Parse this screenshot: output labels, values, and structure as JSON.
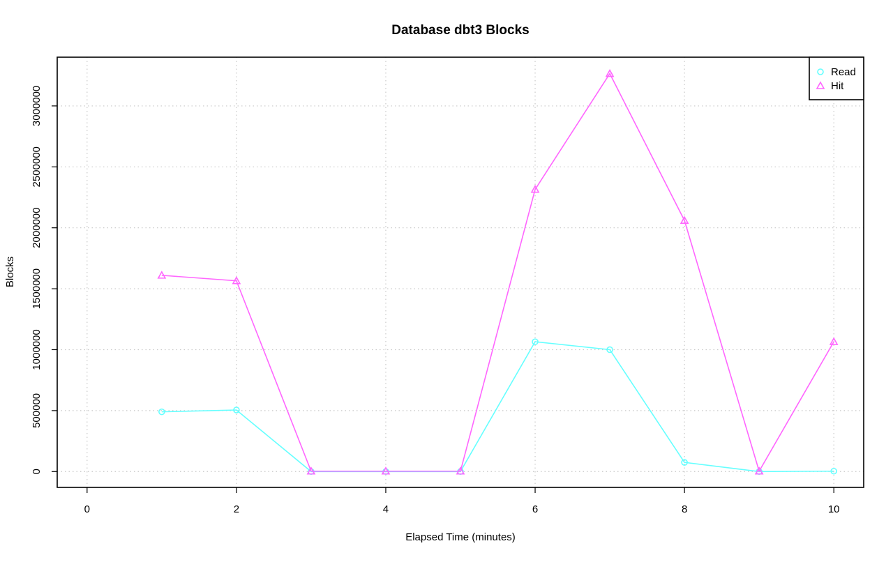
{
  "chart_data": {
    "type": "line",
    "title": "Database dbt3 Blocks",
    "xlabel": "Elapsed Time (minutes)",
    "ylabel": "Blocks",
    "xlim": [
      -0.4,
      10.4
    ],
    "ylim": [
      -130000,
      3400000
    ],
    "x_ticks": [
      0,
      2,
      4,
      6,
      8,
      10
    ],
    "y_ticks": [
      0,
      500000,
      1000000,
      1500000,
      2000000,
      2500000,
      3000000
    ],
    "grid": true,
    "legend_position": "top-right",
    "x": [
      1,
      2,
      3,
      4,
      5,
      6,
      7,
      8,
      9,
      10
    ],
    "series": [
      {
        "name": "Read",
        "color": "#66ffff",
        "marker": "circle",
        "values": [
          490000,
          505000,
          0,
          0,
          0,
          1065000,
          1000000,
          75000,
          0,
          3000
        ]
      },
      {
        "name": "Hit",
        "color": "#ff66ff",
        "marker": "triangle",
        "values": [
          1610000,
          1565000,
          3000,
          3000,
          3000,
          2315000,
          3265000,
          2060000,
          3000,
          1065000
        ]
      }
    ]
  }
}
